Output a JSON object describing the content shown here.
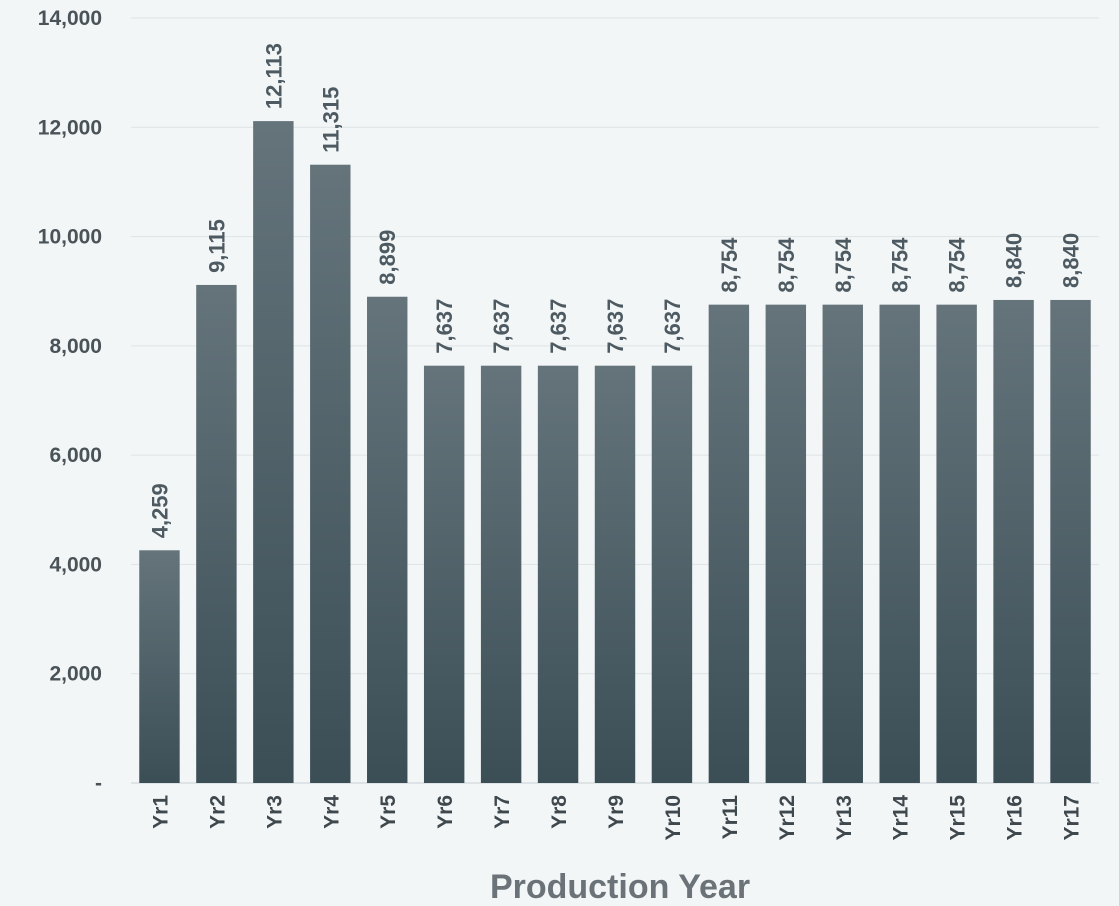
{
  "chart_data": {
    "type": "bar",
    "title": "",
    "xlabel": "Production Year",
    "ylabel": "",
    "categories": [
      "Yr1",
      "Yr2",
      "Yr3",
      "Yr4",
      "Yr5",
      "Yr6",
      "Yr7",
      "Yr8",
      "Yr9",
      "Yr10",
      "Yr11",
      "Yr12",
      "Yr13",
      "Yr14",
      "Yr15",
      "Yr16",
      "Yr17"
    ],
    "values": [
      4259,
      9115,
      12113,
      11315,
      8899,
      7637,
      7637,
      7637,
      7637,
      7637,
      8754,
      8754,
      8754,
      8754,
      8754,
      8840,
      8840
    ],
    "data_labels": [
      "4,259",
      "9,115",
      "12,113",
      "11,315",
      "8,899",
      "7,637",
      "7,637",
      "7,637",
      "7,637",
      "7,637",
      "8,754",
      "8,754",
      "8,754",
      "8,754",
      "8,754",
      "8,840",
      "8,840"
    ],
    "ylim": [
      0,
      14000
    ],
    "yticks": [
      0,
      2000,
      4000,
      6000,
      8000,
      10000,
      12000,
      14000
    ],
    "ytick_labels": [
      "-",
      "2,000",
      "4,000",
      "6,000",
      "8,000",
      "10,000",
      "12,000",
      "14,000"
    ],
    "grid": true,
    "bar_color_top": "#65747b",
    "bar_color_bottom": "#3b4e56"
  }
}
